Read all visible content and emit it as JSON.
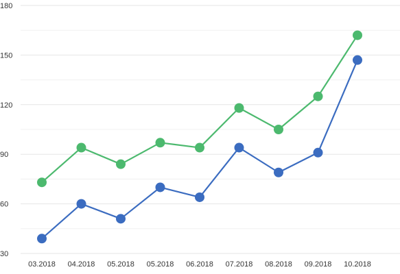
{
  "chart_data": {
    "type": "line",
    "title": "",
    "xlabel": "",
    "ylabel": "",
    "categories": [
      "03.2018",
      "04.2018",
      "05.2018",
      "05.2018",
      "06.2018",
      "07.2018",
      "08.2018",
      "09.2018",
      "10.2018"
    ],
    "yticks": [
      "30",
      "60",
      "90",
      "120",
      "150",
      "180"
    ],
    "ylim": [
      30,
      180
    ],
    "grid": true,
    "legend": "none",
    "series": [
      {
        "color": "#3b6cc0",
        "values": [
          39,
          60,
          51,
          70,
          64,
          94,
          79,
          91,
          147
        ]
      },
      {
        "color": "#4cb96e",
        "values": [
          73,
          94,
          84,
          97,
          94,
          118,
          105,
          125,
          162
        ]
      }
    ]
  }
}
